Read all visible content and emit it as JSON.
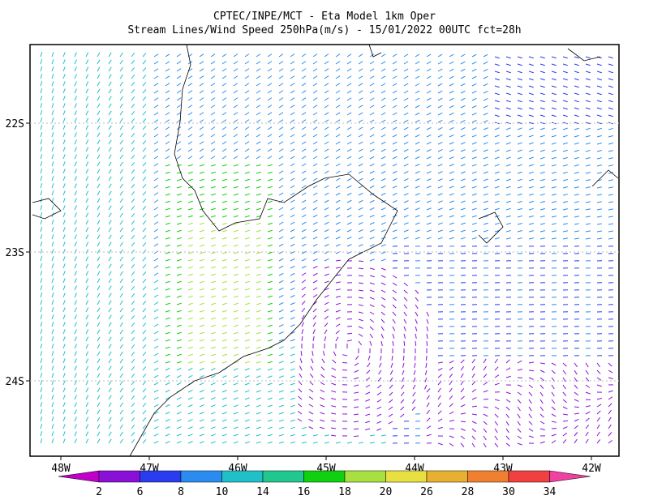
{
  "header": {
    "title": "CPTEC/INPE/MCT -  Eta Model 1km Oper",
    "subtitle": "Stream Lines/Wind Speed 250hPa(m/s) - 15/01/2022 00UTC fct=28h"
  },
  "map": {
    "x_labels": [
      "48W",
      "47W",
      "46W",
      "45W",
      "44W",
      "43W",
      "42W"
    ],
    "y_labels": [
      "22S",
      "23S",
      "24S"
    ]
  },
  "colorbar": {
    "labels": [
      "2",
      "6",
      "8",
      "10",
      "14",
      "16",
      "18",
      "20",
      "26",
      "28",
      "30",
      "34"
    ],
    "colors": [
      "#c000c8",
      "#8a10d8",
      "#2a3cf0",
      "#2a8cf0",
      "#20c0c8",
      "#20c890",
      "#10d010",
      "#a8e040",
      "#e8e040",
      "#e8b030",
      "#f08030",
      "#f04040",
      "#f040a0"
    ]
  }
}
